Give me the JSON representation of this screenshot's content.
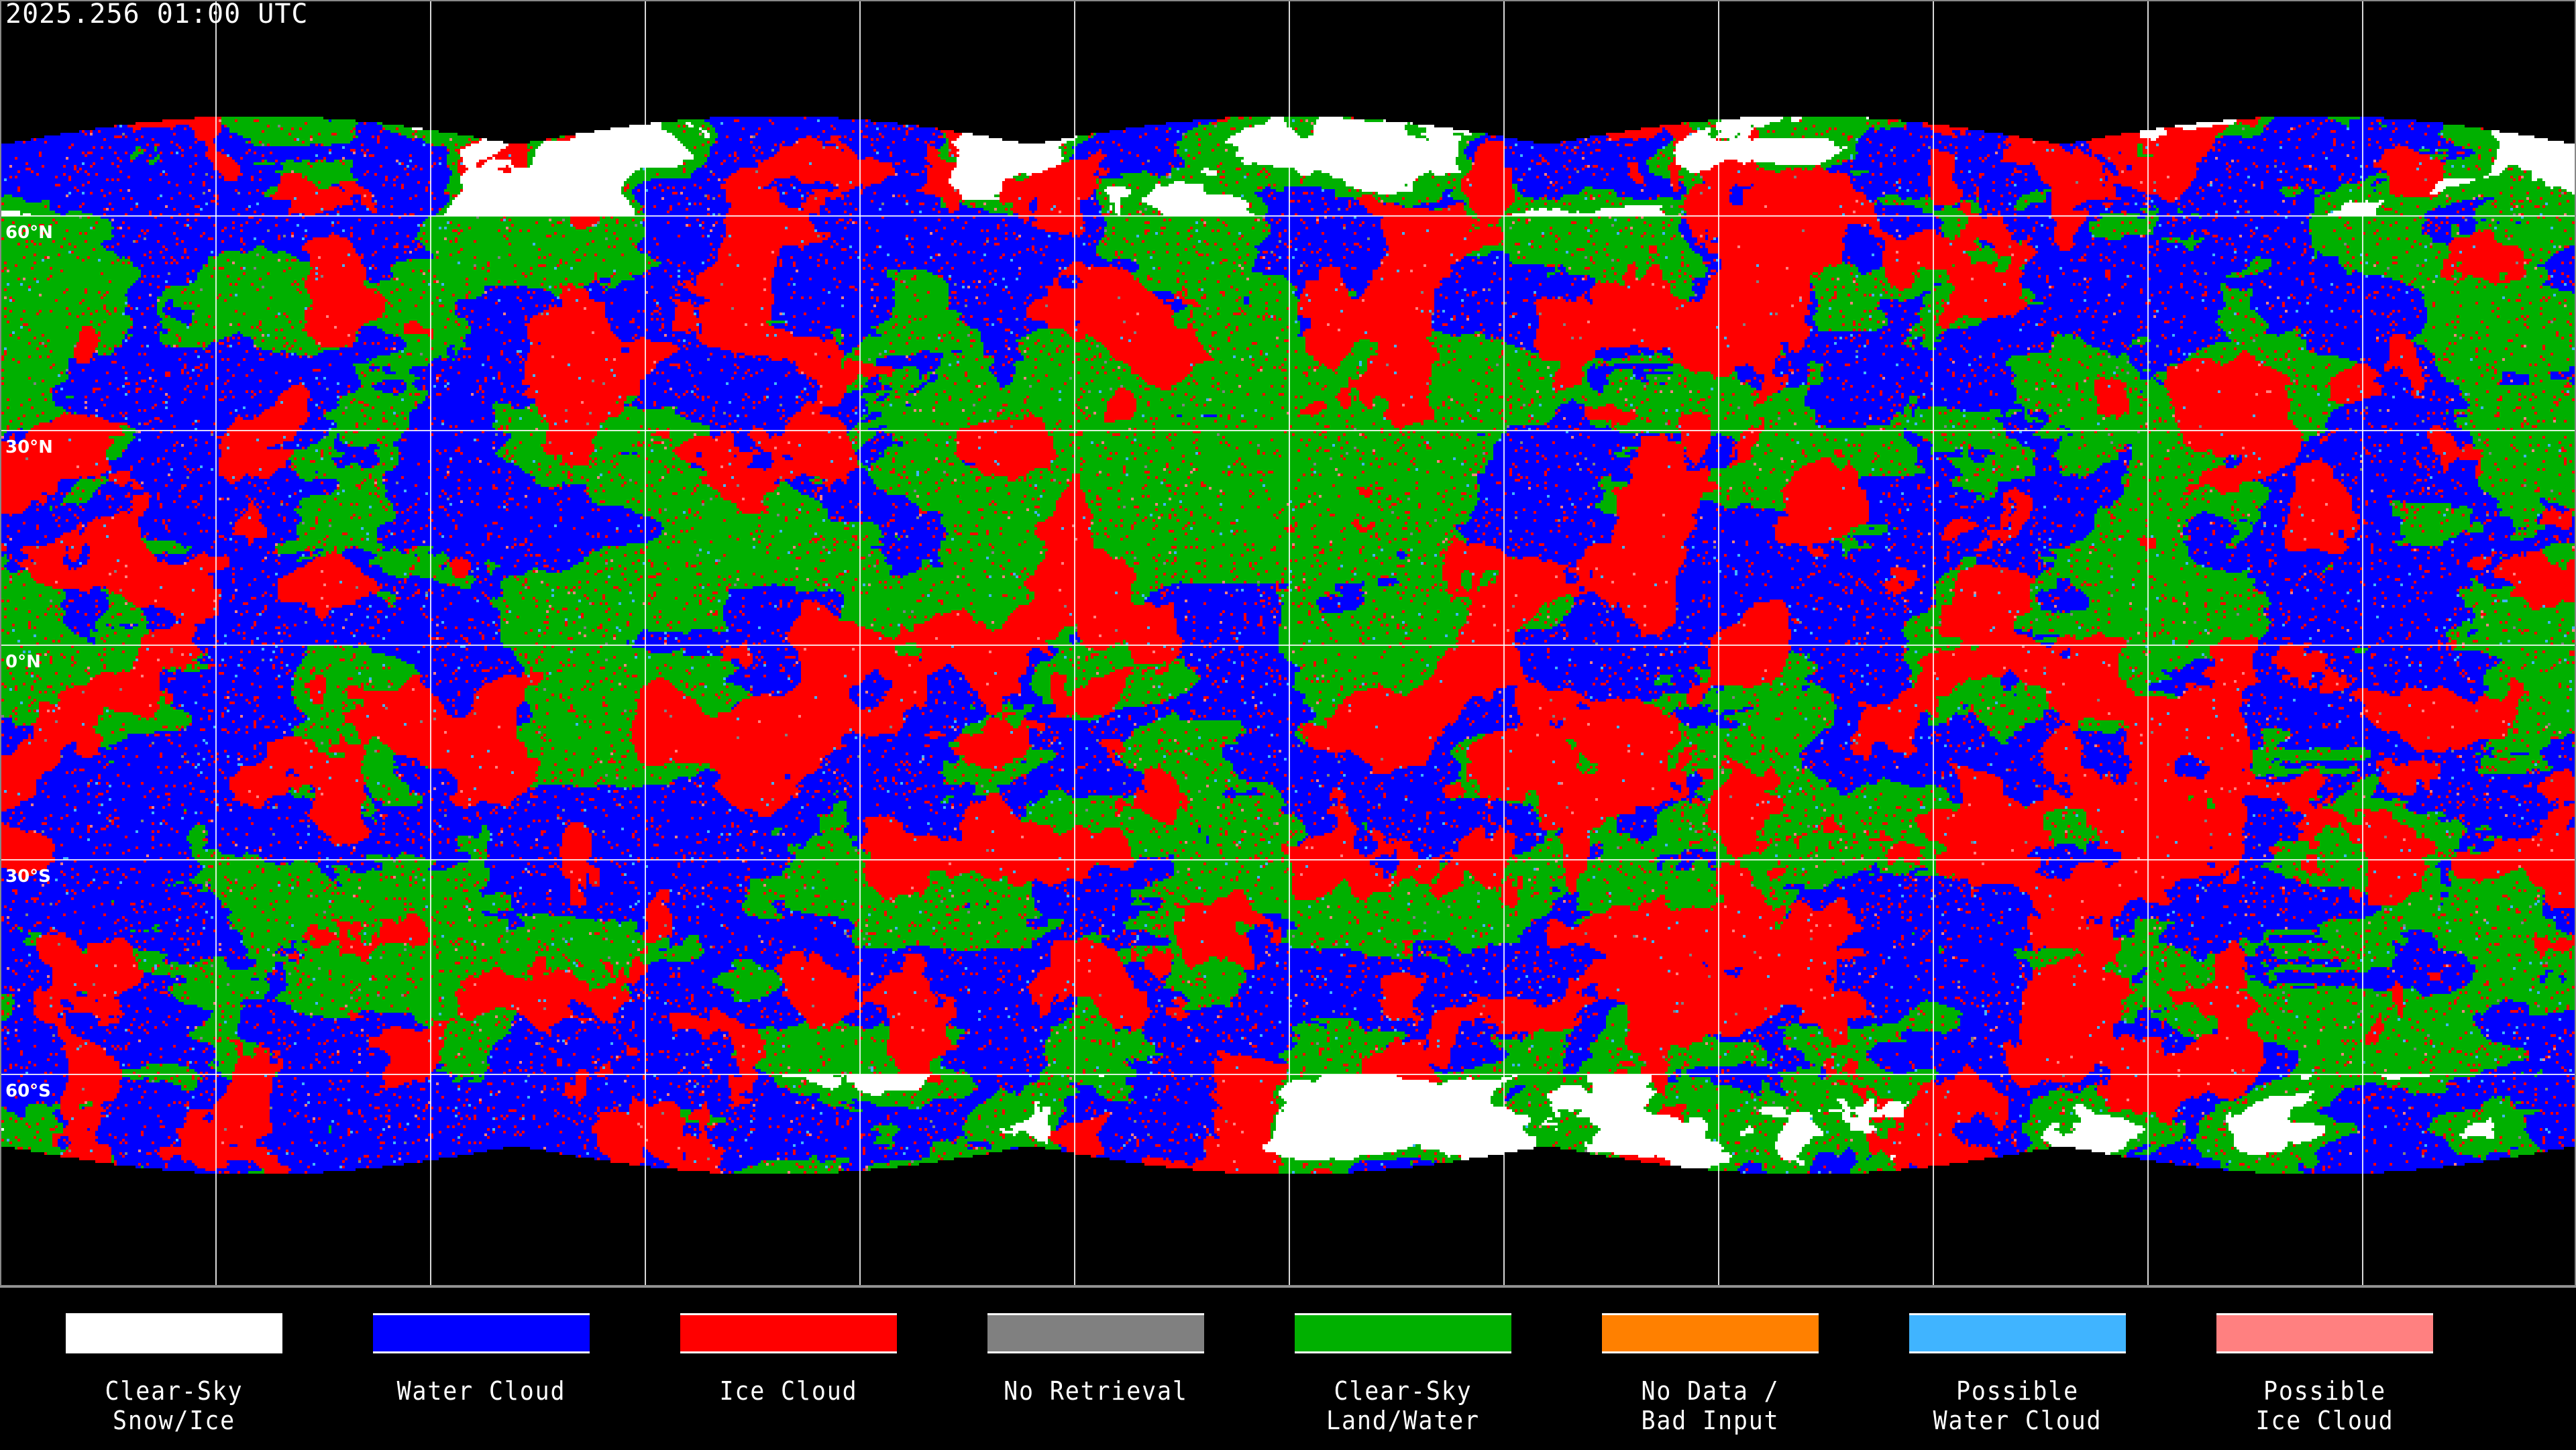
{
  "title": "2025.256 01:00 UTC",
  "map": {
    "projection": "equirectangular",
    "grid_spacing_deg": 30,
    "lat_labels": [
      "60°N",
      "30°N",
      "0°N",
      "30°S",
      "60°S"
    ],
    "lat_values": [
      60,
      30,
      0,
      -30,
      -60
    ]
  },
  "legend": [
    {
      "line1": "Clear-Sky",
      "line2": "Snow/Ice",
      "color": "#ffffff"
    },
    {
      "line1": "Water Cloud",
      "line2": "",
      "color": "#0000ff"
    },
    {
      "line1": "Ice Cloud",
      "line2": "",
      "color": "#ff0000"
    },
    {
      "line1": "No Retrieval",
      "line2": "",
      "color": "#808080"
    },
    {
      "line1": "Clear-Sky",
      "line2": "Land/Water",
      "color": "#00b000"
    },
    {
      "line1": "No Data /",
      "line2": "Bad Input",
      "color": "#ff8000"
    },
    {
      "line1": "Possible",
      "line2": "Water Cloud",
      "color": "#40b4ff"
    },
    {
      "line1": "Possible",
      "line2": "Ice Cloud",
      "color": "#ff8080"
    }
  ]
}
